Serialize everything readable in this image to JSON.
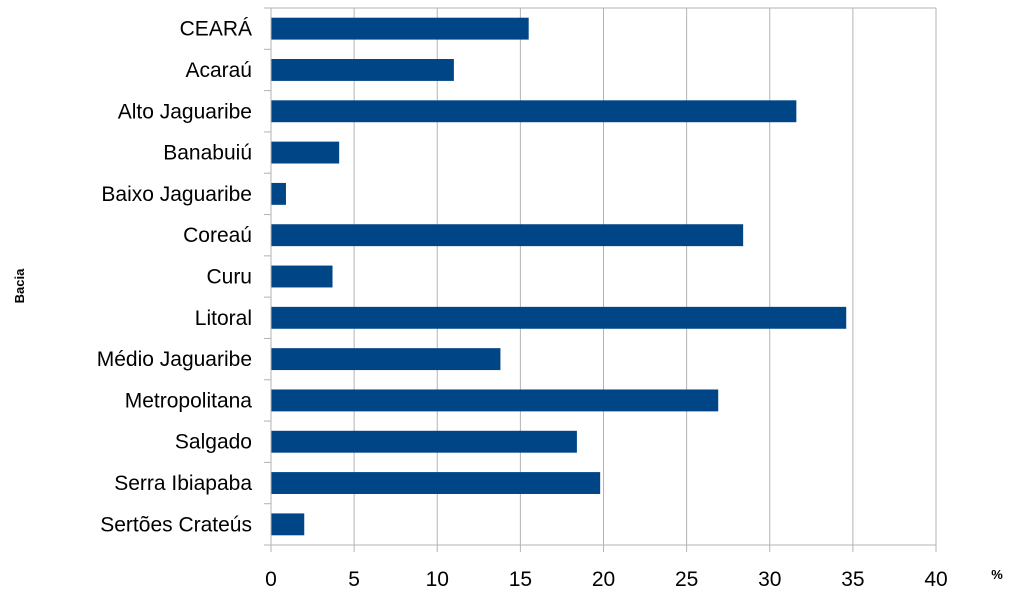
{
  "chart_data": {
    "type": "bar",
    "orientation": "horizontal",
    "title": "",
    "xlabel": "%",
    "ylabel": "Bacia",
    "categories": [
      "CEARÁ",
      "Acaraú",
      "Alto Jaguaribe",
      "Banabuiú",
      "Baixo Jaguaribe",
      "Coreaú",
      "Curu",
      "Litoral",
      "Médio Jaguaribe",
      "Metropolitana",
      "Salgado",
      "Serra Ibiapaba",
      "Sertões Crateús"
    ],
    "values": [
      15.5,
      11.0,
      31.6,
      4.1,
      0.9,
      28.4,
      3.7,
      34.6,
      13.8,
      26.9,
      18.4,
      19.8,
      2.0
    ],
    "xlim": [
      0,
      40
    ],
    "xticks": [
      0,
      5,
      10,
      15,
      20,
      25,
      30,
      35,
      40
    ],
    "grid": "vertical",
    "legend": "none",
    "bar_color": "#004586"
  }
}
